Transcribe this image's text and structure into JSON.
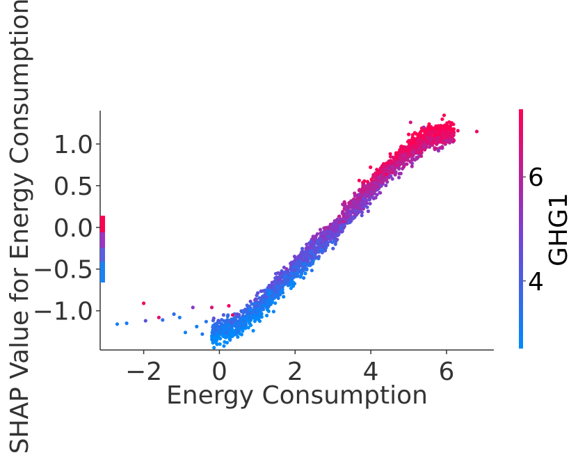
{
  "chart_data": {
    "type": "scatter",
    "title": "",
    "xlabel": "Energy Consumption",
    "ylabel": "SHAP Value for Energy Consumption",
    "xlim": [
      -3.15,
      7.25
    ],
    "ylim": [
      -1.47,
      1.4
    ],
    "x_ticks": [
      -2,
      0,
      2,
      4,
      6
    ],
    "x_tick_labels": [
      "−2",
      "0",
      "2",
      "4",
      "6"
    ],
    "y_ticks": [
      -1.0,
      -0.5,
      0.0,
      0.5,
      1.0
    ],
    "y_tick_labels": [
      "−1.0",
      "−0.5",
      "0.0",
      "0.5",
      "1.0"
    ],
    "colorbar": {
      "label": "GHG1",
      "range": [
        2.7,
        7.3
      ],
      "ticks": [
        4,
        6
      ],
      "tick_labels": [
        "4",
        "6"
      ],
      "low_color": "#008afb",
      "mid_color": "#7d3ed0",
      "high_color": "#ff0052"
    },
    "series": [
      {
        "name": "points",
        "points": [
          {
            "x": -2.7,
            "y": -1.16,
            "c": 3.0
          },
          {
            "x": -2.45,
            "y": -1.15,
            "c": 3.2
          },
          {
            "x": -2.0,
            "y": -0.91,
            "c": 7.0
          },
          {
            "x": -1.95,
            "y": -1.12,
            "c": 4.4
          },
          {
            "x": -1.6,
            "y": -1.08,
            "c": 6.8
          },
          {
            "x": -1.5,
            "y": -1.11,
            "c": 3.5
          },
          {
            "x": -1.2,
            "y": -1.04,
            "c": 3.6
          },
          {
            "x": -1.05,
            "y": -1.08,
            "c": 3.3
          },
          {
            "x": -0.9,
            "y": -1.26,
            "c": 3.0
          },
          {
            "x": -0.7,
            "y": -0.96,
            "c": 5.2
          },
          {
            "x": -0.6,
            "y": -1.19,
            "c": 3.1
          },
          {
            "x": -0.45,
            "y": -1.28,
            "c": 3.2
          },
          {
            "x": -0.35,
            "y": -1.13,
            "c": 3.4
          },
          {
            "x": -0.2,
            "y": -0.96,
            "c": 6.6
          },
          {
            "x": -0.15,
            "y": -1.09,
            "c": 4.5
          },
          {
            "x": 0.25,
            "y": -0.94,
            "c": 7.0
          },
          {
            "x": 0.35,
            "y": -1.05,
            "c": 6.8
          },
          {
            "x": 6.3,
            "y": 1.16,
            "c": 7.0
          },
          {
            "x": 6.8,
            "y": 1.15,
            "c": 7.0
          },
          {
            "x": 5.05,
            "y": 1.26,
            "c": 6.5
          },
          {
            "x": 5.4,
            "y": 1.2,
            "c": 6.0
          }
        ],
        "band": {
          "count": 2400,
          "x_range": [
            -0.2,
            6.2
          ],
          "knots_x": [
            -0.2,
            0.5,
            1.0,
            1.5,
            2.0,
            2.5,
            3.0,
            3.5,
            4.0,
            4.5,
            5.0,
            5.5,
            6.0,
            6.2
          ],
          "knots_y": [
            -1.27,
            -1.17,
            -0.98,
            -0.74,
            -0.5,
            -0.27,
            -0.06,
            0.22,
            0.46,
            0.71,
            0.92,
            1.06,
            1.12,
            1.12
          ],
          "spread": 0.07,
          "color_knots_x": [
            -0.2,
            1.0,
            2.0,
            3.0,
            4.0,
            5.0,
            6.2
          ],
          "color_knots_c": [
            3.0,
            3.3,
            3.9,
            4.9,
            6.0,
            6.7,
            7.0
          ]
        }
      }
    ]
  }
}
